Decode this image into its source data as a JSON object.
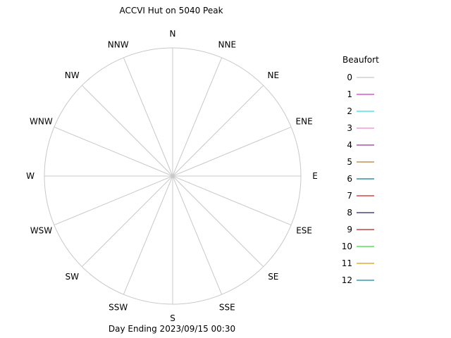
{
  "chart_data": {
    "type": "wind-rose",
    "title": "ACCVI Hut on 5040 Peak",
    "caption": "Day Ending 2023/09/15 00:30",
    "directions": [
      "N",
      "NNE",
      "NE",
      "ENE",
      "E",
      "ESE",
      "SE",
      "SSE",
      "S",
      "SSW",
      "SW",
      "WSW",
      "W",
      "WNW",
      "NW",
      "NNW"
    ],
    "grid": true,
    "legend": {
      "title": "Beaufort",
      "placement": "right",
      "entries": [
        {
          "label": "0",
          "color": "#c8c8c8"
        },
        {
          "label": "1",
          "color": "#cc33cc"
        },
        {
          "label": "2",
          "color": "#33dddd"
        },
        {
          "label": "3",
          "color": "#ee88cc"
        },
        {
          "label": "4",
          "color": "#993399"
        },
        {
          "label": "5",
          "color": "#bb7733"
        },
        {
          "label": "6",
          "color": "#117788"
        },
        {
          "label": "7",
          "color": "#cc2222"
        },
        {
          "label": "8",
          "color": "#222266"
        },
        {
          "label": "9",
          "color": "#aa2222"
        },
        {
          "label": "10",
          "color": "#33dd33"
        },
        {
          "label": "11",
          "color": "#dd9911"
        },
        {
          "label": "12",
          "color": "#118899"
        }
      ]
    },
    "series": []
  }
}
